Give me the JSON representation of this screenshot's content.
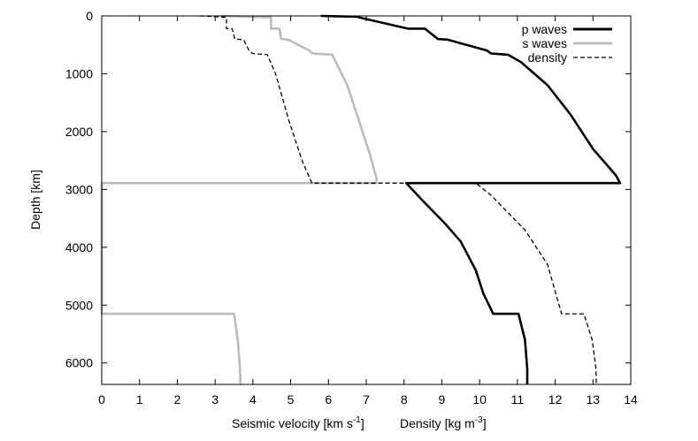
{
  "chart_data": {
    "type": "line",
    "xlabel_main": "Seismic velocity [km s",
    "xlabel_main_sup": "-1",
    "xlabel_main_end": "]",
    "xlabel_density": "Density [kg m",
    "xlabel_density_sup": "-3",
    "xlabel_density_end": "]",
    "ylabel": "Depth [km]",
    "xlim": [
      0,
      14
    ],
    "ylim": [
      0,
      6371
    ],
    "y_inverted": true,
    "x_ticks": [
      "0",
      "1",
      "2",
      "3",
      "4",
      "5",
      "6",
      "7",
      "8",
      "9",
      "10",
      "11",
      "12",
      "13",
      "14"
    ],
    "y_ticks": [
      "0",
      "1000",
      "2000",
      "3000",
      "4000",
      "5000",
      "6000"
    ],
    "legend_position": "top-right",
    "colors": {
      "p_waves": "#000000",
      "s_waves": "#bbbbbb",
      "density": "#000000"
    },
    "series": [
      {
        "name": "p waves",
        "style": "solid-thick",
        "points": [
          [
            5.8,
            0
          ],
          [
            6.8,
            15
          ],
          [
            6.8,
            24
          ],
          [
            8.1,
            220
          ],
          [
            8.55,
            220
          ],
          [
            8.9,
            400
          ],
          [
            9.15,
            410
          ],
          [
            10.2,
            600
          ],
          [
            10.3,
            650
          ],
          [
            10.75,
            670
          ],
          [
            11.1,
            800
          ],
          [
            11.8,
            1200
          ],
          [
            12.4,
            1700
          ],
          [
            13.0,
            2300
          ],
          [
            13.6,
            2750
          ],
          [
            13.72,
            2890
          ],
          [
            8.06,
            2891
          ],
          [
            8.5,
            3200
          ],
          [
            9.1,
            3600
          ],
          [
            9.5,
            3900
          ],
          [
            9.9,
            4400
          ],
          [
            10.1,
            4800
          ],
          [
            10.36,
            5150
          ],
          [
            11.03,
            5150
          ],
          [
            11.2,
            5600
          ],
          [
            11.26,
            6100
          ],
          [
            11.26,
            6371
          ]
        ]
      },
      {
        "name": "s waves",
        "style": "solid-gray",
        "points": [
          [
            3.2,
            0
          ],
          [
            3.9,
            15
          ],
          [
            4.48,
            24
          ],
          [
            4.48,
            220
          ],
          [
            4.7,
            220
          ],
          [
            4.75,
            400
          ],
          [
            4.93,
            410
          ],
          [
            5.5,
            600
          ],
          [
            5.57,
            650
          ],
          [
            6.1,
            670
          ],
          [
            6.5,
            1200
          ],
          [
            6.8,
            1800
          ],
          [
            7.1,
            2400
          ],
          [
            7.27,
            2800
          ],
          [
            7.27,
            2890
          ],
          [
            0.0,
            2891
          ],
          [
            0.0,
            5150
          ],
          [
            3.5,
            5150
          ],
          [
            3.6,
            5600
          ],
          [
            3.66,
            6100
          ],
          [
            3.67,
            6371
          ]
        ]
      },
      {
        "name": "density",
        "style": "dashed",
        "points": [
          [
            2.6,
            0
          ],
          [
            3.1,
            15
          ],
          [
            3.3,
            24
          ],
          [
            3.3,
            220
          ],
          [
            3.45,
            220
          ],
          [
            3.52,
            400
          ],
          [
            3.75,
            410
          ],
          [
            3.9,
            600
          ],
          [
            3.99,
            650
          ],
          [
            4.38,
            670
          ],
          [
            4.6,
            1000
          ],
          [
            4.95,
            1800
          ],
          [
            5.3,
            2500
          ],
          [
            5.56,
            2890
          ],
          [
            9.9,
            2891
          ],
          [
            10.3,
            3100
          ],
          [
            11.2,
            3700
          ],
          [
            11.8,
            4300
          ],
          [
            12.17,
            5150
          ],
          [
            12.76,
            5150
          ],
          [
            12.98,
            5600
          ],
          [
            13.08,
            6100
          ],
          [
            13.09,
            6371
          ]
        ]
      }
    ]
  }
}
